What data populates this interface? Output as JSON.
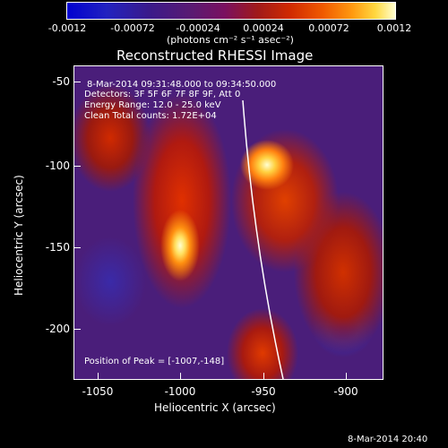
{
  "colorbar": {
    "ticks": [
      "-0.0012",
      "-0.00072",
      "-0.00024",
      "0.00024",
      "0.00072",
      "0.0012"
    ],
    "units": "(photons cm⁻² s⁻¹ asec⁻²)",
    "colors": [
      "#0000d0",
      "#5a1a72",
      "#d02a00",
      "#ffd840",
      "#ffffd0"
    ]
  },
  "plot": {
    "title": "Reconstructed RHESSI Image",
    "xlabel": "Heliocentric X (arcsec)",
    "ylabel": "Heliocentric Y (arcsec)",
    "xticks": [
      "-1050",
      "-1000",
      "-950",
      "-900"
    ],
    "yticks": [
      "-50",
      "-100",
      "-150",
      "-200"
    ],
    "info": {
      "time": "8-Mar-2014 09:31:48.000 to 09:34:50.000",
      "detectors": "Detectors: 3F 5F 6F 7F 8F 9F, Att 0",
      "energy": "Energy Range: 12.0 - 25.0 keV",
      "clean": "Clean     Total counts: 1.72E+04"
    },
    "peak": "Position of Peak = [-1007,-148]"
  },
  "footer": {
    "timestamp": "8-Mar-2014 20:40"
  }
}
